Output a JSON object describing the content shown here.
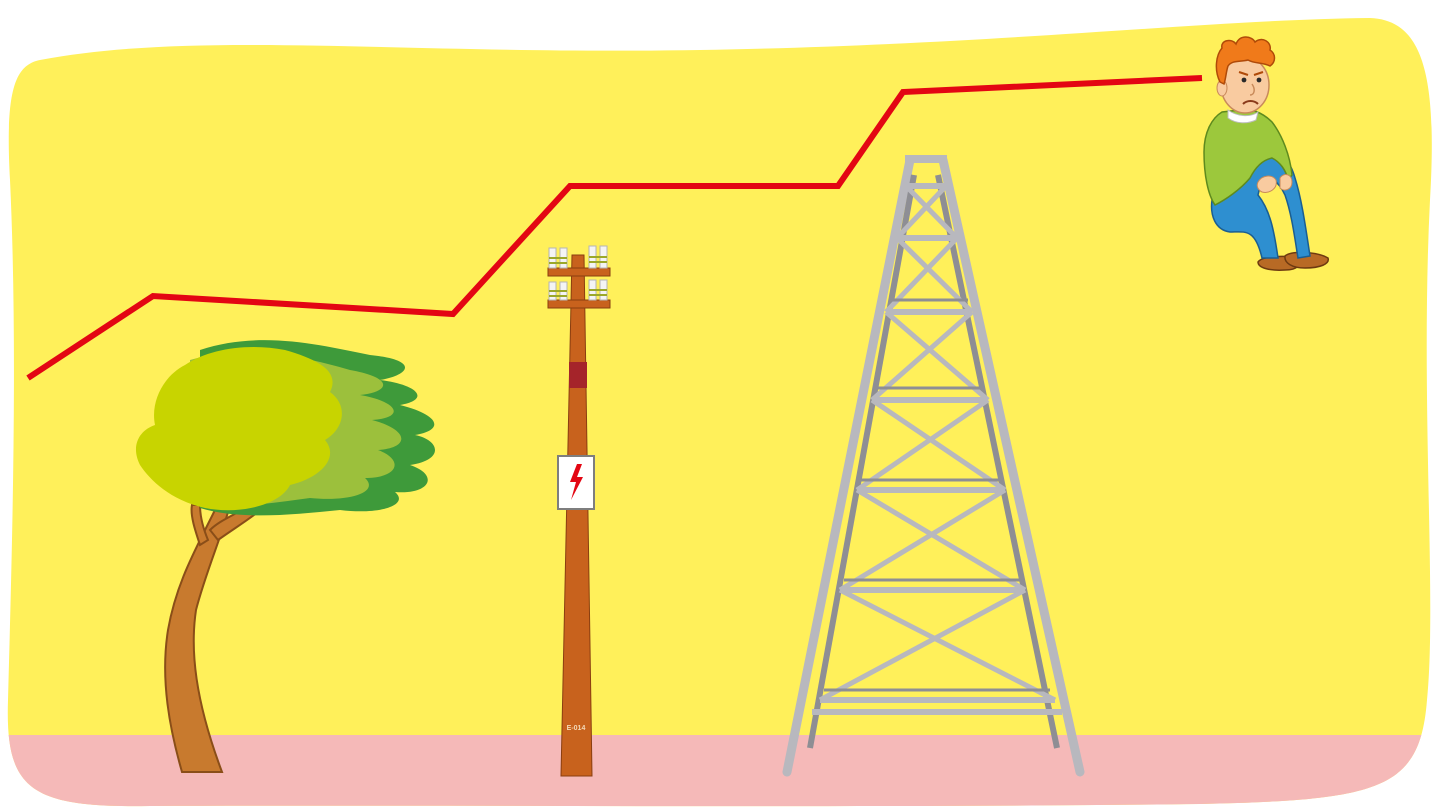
{
  "illustration": {
    "pole_label": "E-014"
  },
  "colors": {
    "sky": "#FFF05A",
    "ground": "#F5B9B8",
    "line": "#E30613",
    "pole": "#C8621D",
    "pole_band": "#A5242A",
    "tower": "#B8B8BE",
    "tower_dark": "#8E8E94",
    "tree_trunk": "#C87A2E",
    "tree_leaf_light": "#C8D400",
    "tree_leaf_mid": "#9CC03C",
    "tree_leaf_dark": "#3E9A3A",
    "hair": "#F07A1A",
    "skin": "#F9CBA0",
    "sweater": "#9CC83C",
    "jeans": "#2E8FD0",
    "shoes": "#B86A25"
  },
  "icons": [
    "windswept-tree",
    "utility-pole",
    "high-voltage-sign",
    "lattice-tower",
    "sad-person"
  ]
}
